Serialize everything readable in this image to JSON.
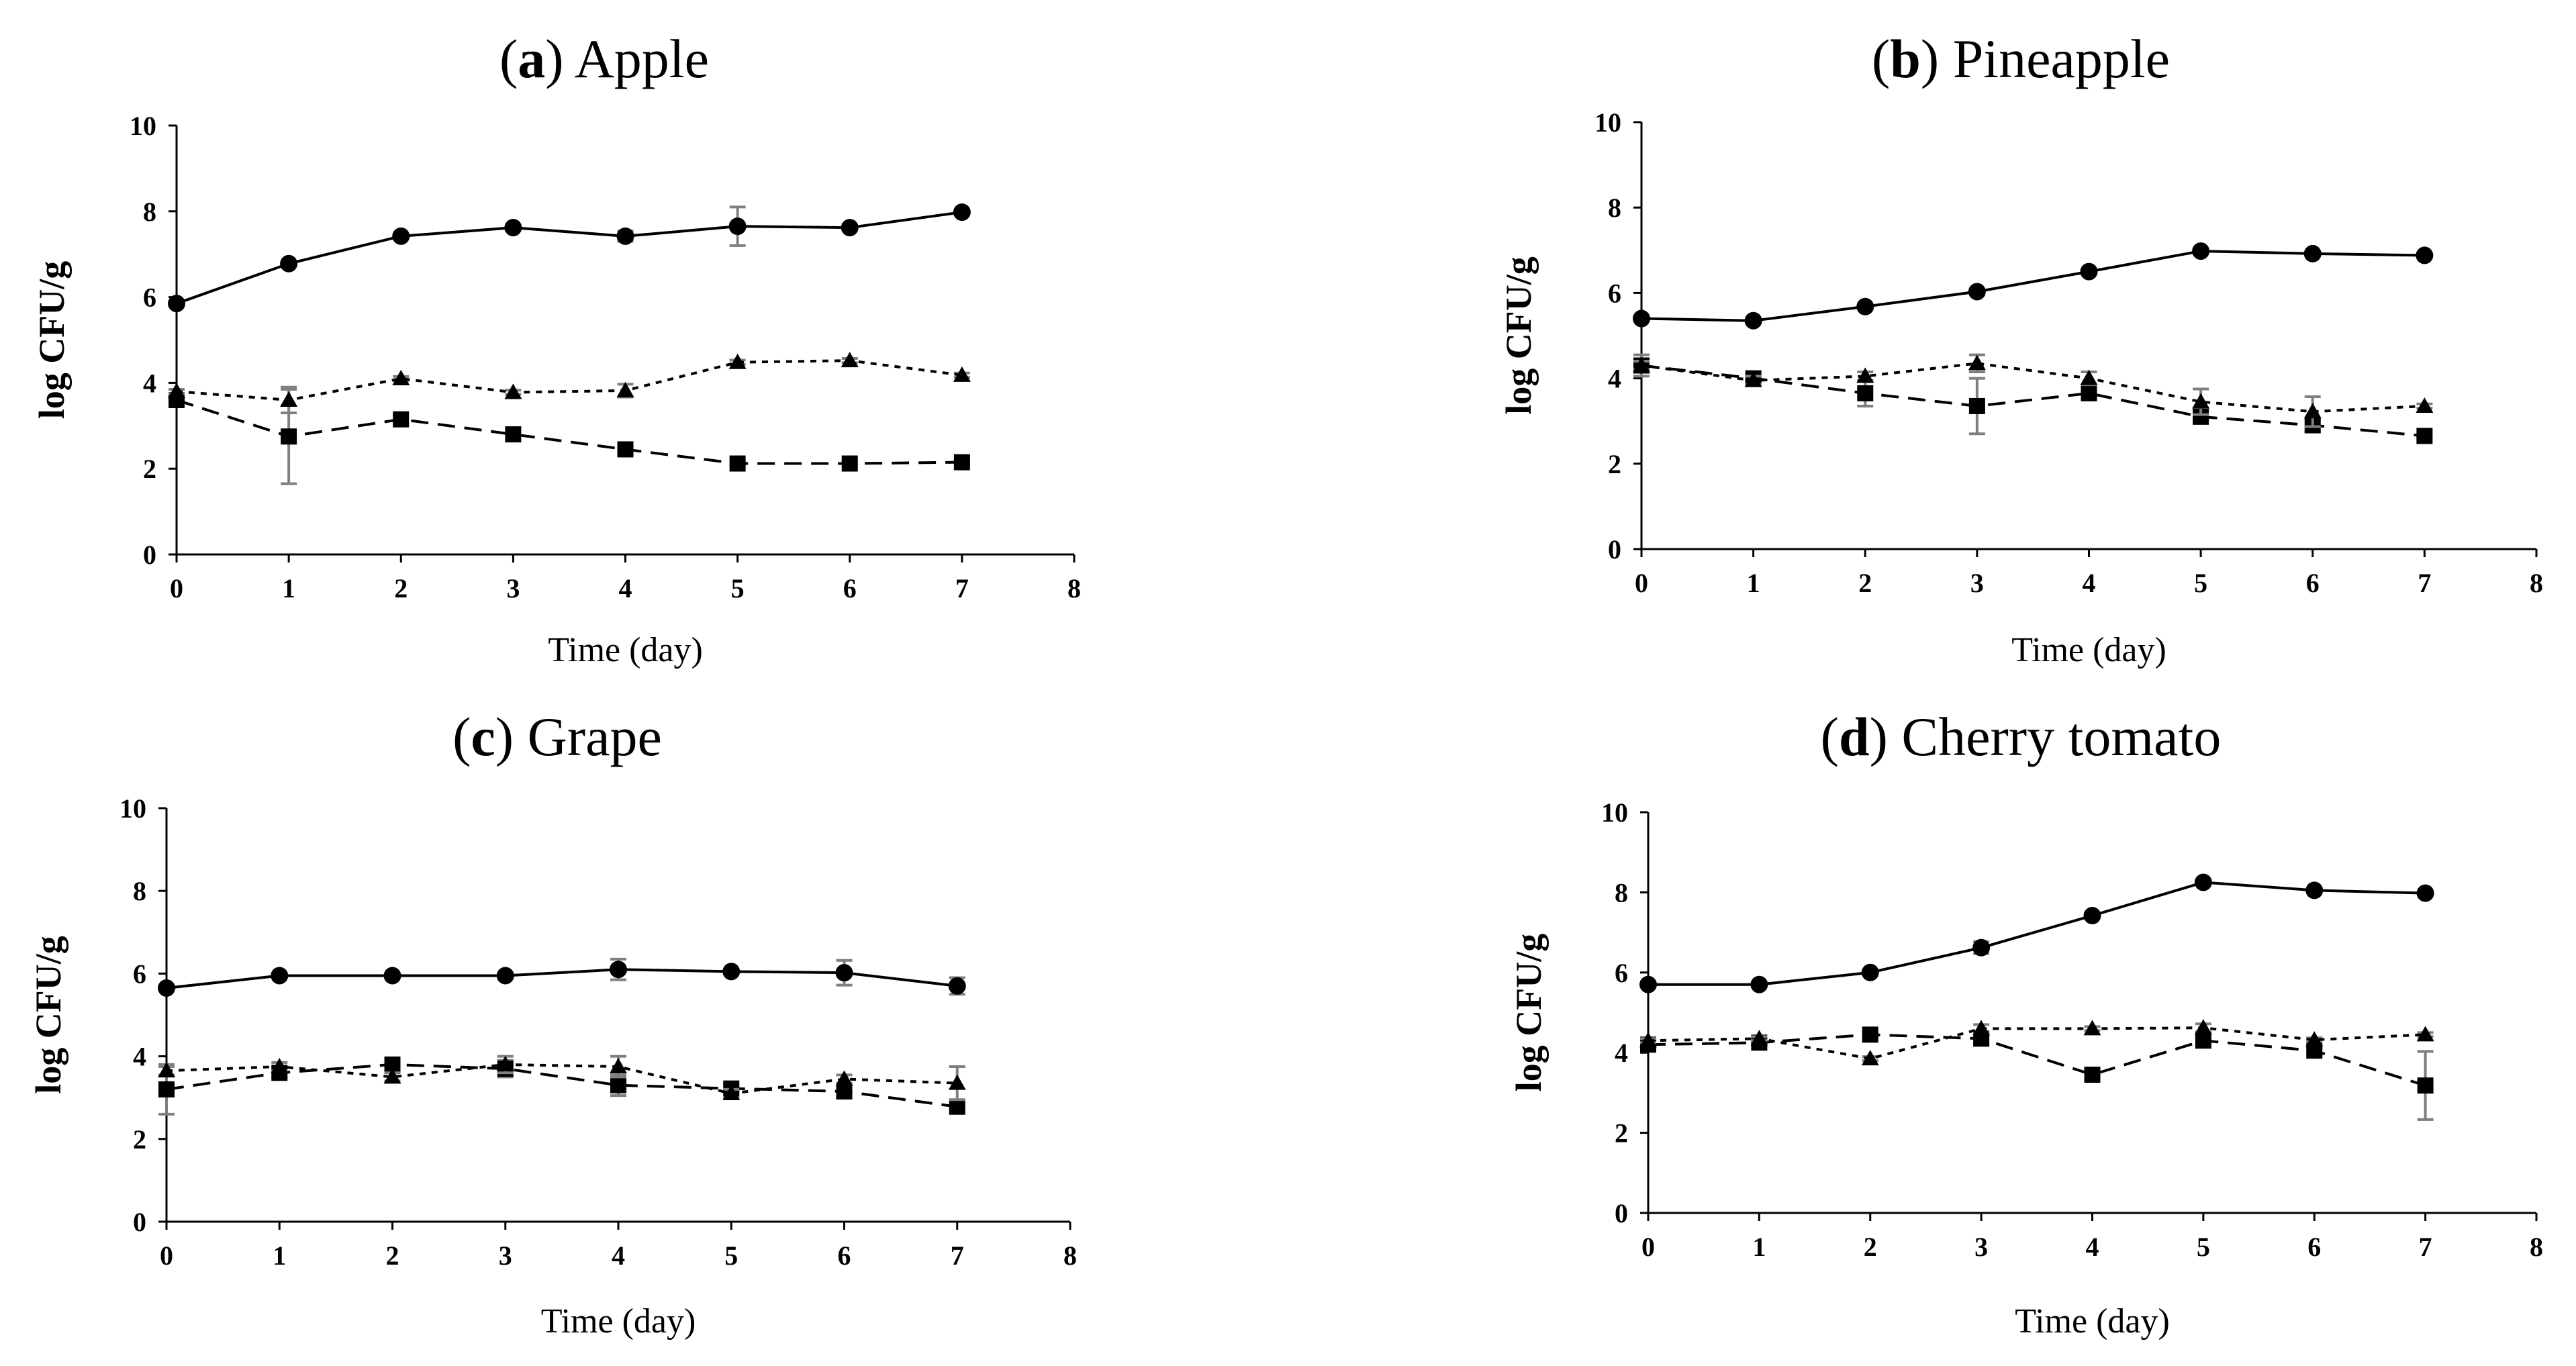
{
  "chart_data": [
    {
      "type": "line",
      "panel_letter": "a",
      "panel_name": "Apple",
      "xlabel": "Time (day)",
      "ylabel": "log CFU/g",
      "xlim": [
        0,
        8
      ],
      "ylim": [
        0,
        10
      ],
      "x_ticks": [
        0,
        1,
        2,
        3,
        4,
        5,
        6,
        7,
        8
      ],
      "y_ticks": [
        0,
        2,
        4,
        6,
        8,
        10
      ],
      "x": [
        0,
        1,
        2,
        3,
        4,
        5,
        6,
        7
      ],
      "series": [
        {
          "marker": "circle",
          "dash": "solid",
          "values": [
            5.85,
            6.78,
            7.42,
            7.62,
            7.42,
            7.65,
            7.62,
            7.98
          ],
          "errors": [
            0.05,
            0.05,
            0.05,
            0.05,
            0.12,
            0.45,
            0.05,
            0.05
          ]
        },
        {
          "marker": "triangle",
          "dash": "dotted",
          "values": [
            3.8,
            3.6,
            4.1,
            3.78,
            3.82,
            4.48,
            4.52,
            4.18
          ],
          "errors": [
            0.05,
            0.3,
            0.05,
            0.05,
            0.15,
            0.05,
            0.05,
            0.05
          ]
        },
        {
          "marker": "square",
          "dash": "dashed",
          "values": [
            3.6,
            2.75,
            3.15,
            2.8,
            2.45,
            2.12,
            2.12,
            2.15
          ],
          "errors": [
            0.1,
            1.1,
            0.1,
            0.15,
            0.1,
            0.05,
            0.05,
            0.05
          ]
        }
      ]
    },
    {
      "type": "line",
      "panel_letter": "b",
      "panel_name": "Pineapple",
      "xlabel": "Time (day)",
      "ylabel": "log CFU/g",
      "xlim": [
        0,
        8
      ],
      "ylim": [
        0,
        10
      ],
      "x_ticks": [
        0,
        1,
        2,
        3,
        4,
        5,
        6,
        7,
        8
      ],
      "y_ticks": [
        0,
        2,
        4,
        6,
        8,
        10
      ],
      "x": [
        0,
        1,
        2,
        3,
        4,
        5,
        6,
        7
      ],
      "series": [
        {
          "marker": "circle",
          "dash": "solid",
          "values": [
            5.4,
            5.35,
            5.68,
            6.03,
            6.5,
            6.98,
            6.92,
            6.88
          ],
          "errors": [
            0.05,
            0.05,
            0.05,
            0.05,
            0.05,
            0.05,
            0.05,
            0.05
          ]
        },
        {
          "marker": "triangle",
          "dash": "dotted",
          "values": [
            4.3,
            3.95,
            4.05,
            4.35,
            4.0,
            3.45,
            3.22,
            3.35
          ],
          "errors": [
            0.1,
            0.1,
            0.1,
            0.2,
            0.15,
            0.3,
            0.35,
            0.05
          ]
        },
        {
          "marker": "square",
          "dash": "dashed",
          "values": [
            4.3,
            4.0,
            3.65,
            3.35,
            3.65,
            3.1,
            2.9,
            2.65
          ],
          "errors": [
            0.25,
            0.1,
            0.3,
            0.65,
            0.15,
            0.15,
            0.15,
            0.05
          ]
        }
      ]
    },
    {
      "type": "line",
      "panel_letter": "c",
      "panel_name": "Grape",
      "xlabel": "Time (day)",
      "ylabel": "log CFU/g",
      "xlim": [
        0,
        8
      ],
      "ylim": [
        0,
        10
      ],
      "x_ticks": [
        0,
        1,
        2,
        3,
        4,
        5,
        6,
        7,
        8
      ],
      "y_ticks": [
        0,
        2,
        4,
        6,
        8,
        10
      ],
      "x": [
        0,
        1,
        2,
        3,
        4,
        5,
        6,
        7
      ],
      "series": [
        {
          "marker": "circle",
          "dash": "solid",
          "values": [
            5.65,
            5.95,
            5.95,
            5.95,
            6.1,
            6.05,
            6.02,
            5.7
          ],
          "errors": [
            0.05,
            0.05,
            0.05,
            0.05,
            0.25,
            0.05,
            0.3,
            0.2
          ]
        },
        {
          "marker": "triangle",
          "dash": "dotted",
          "values": [
            3.65,
            3.75,
            3.5,
            3.8,
            3.75,
            3.1,
            3.45,
            3.35
          ],
          "errors": [
            0.1,
            0.1,
            0.1,
            0.2,
            0.25,
            0.1,
            0.1,
            0.4
          ]
        },
        {
          "marker": "square",
          "dash": "dashed",
          "values": [
            3.2,
            3.6,
            3.8,
            3.7,
            3.3,
            3.22,
            3.15,
            2.78
          ],
          "errors": [
            0.6,
            0.1,
            0.05,
            0.2,
            0.25,
            0.1,
            0.1,
            0.05
          ]
        }
      ]
    },
    {
      "type": "line",
      "panel_letter": "d",
      "panel_name": "Cherry tomato",
      "xlabel": "Time (day)",
      "ylabel": "log CFU/g",
      "xlim": [
        0,
        8
      ],
      "ylim": [
        0,
        10
      ],
      "x_ticks": [
        0,
        1,
        2,
        3,
        4,
        5,
        6,
        7,
        8
      ],
      "y_ticks": [
        0,
        2,
        4,
        6,
        8,
        10
      ],
      "x": [
        0,
        1,
        2,
        3,
        4,
        5,
        6,
        7
      ],
      "series": [
        {
          "marker": "circle",
          "dash": "solid",
          "values": [
            5.7,
            5.7,
            6.0,
            6.62,
            7.42,
            8.25,
            8.05,
            7.98
          ],
          "errors": [
            0.05,
            0.05,
            0.05,
            0.15,
            0.05,
            0.05,
            0.05,
            0.05
          ]
        },
        {
          "marker": "triangle",
          "dash": "dotted",
          "values": [
            4.3,
            4.35,
            3.85,
            4.6,
            4.6,
            4.62,
            4.32,
            4.45
          ],
          "errors": [
            0.05,
            0.05,
            0.05,
            0.1,
            0.05,
            0.1,
            0.05,
            0.05
          ]
        },
        {
          "marker": "square",
          "dash": "dashed",
          "values": [
            4.2,
            4.25,
            4.45,
            4.35,
            3.45,
            4.3,
            4.05,
            3.18
          ],
          "errors": [
            0.1,
            0.1,
            0.05,
            0.15,
            0.05,
            0.1,
            0.1,
            0.85
          ]
        }
      ]
    }
  ]
}
